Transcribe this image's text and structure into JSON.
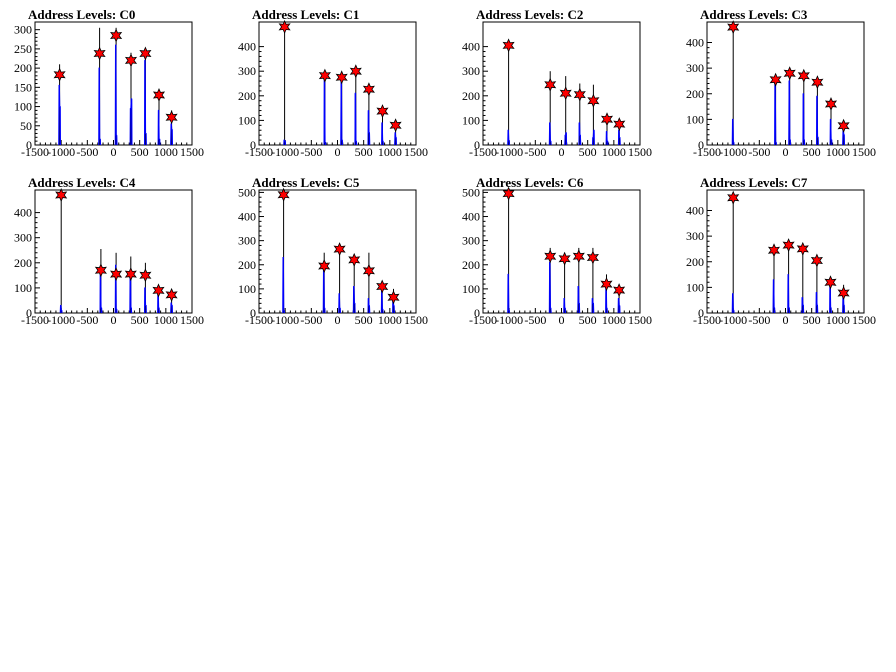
{
  "chart_data": [
    {
      "type": "bar",
      "title": "Address Levels: C0",
      "xlim": [
        -1500,
        1500
      ],
      "ylim": [
        0,
        320
      ],
      "xticks": [
        -1500,
        -1000,
        -500,
        0,
        500,
        1000,
        1500
      ],
      "yticks": [
        0,
        50,
        100,
        150,
        200,
        250,
        300
      ],
      "peaks": [
        {
          "x": -1030,
          "heights": [
            155,
            210,
            100
          ]
        },
        {
          "x": -265,
          "heights": [
            200,
            305,
            15
          ]
        },
        {
          "x": 50,
          "heights": [
            260,
            305,
            25
          ]
        },
        {
          "x": 335,
          "heights": [
            95,
            240,
            120
          ]
        },
        {
          "x": 610,
          "heights": [
            220,
            245,
            30
          ]
        },
        {
          "x": 870,
          "heights": [
            90,
            125,
            15
          ]
        },
        {
          "x": 1110,
          "heights": [
            55,
            90,
            40
          ]
        }
      ],
      "markers": [
        {
          "x": -1030,
          "y": 183
        },
        {
          "x": -265,
          "y": 238
        },
        {
          "x": 50,
          "y": 285
        },
        {
          "x": 335,
          "y": 220
        },
        {
          "x": 610,
          "y": 238
        },
        {
          "x": 870,
          "y": 130
        },
        {
          "x": 1110,
          "y": 72
        }
      ]
    },
    {
      "type": "bar",
      "title": "Address Levels: C1",
      "xlim": [
        -1500,
        1500
      ],
      "ylim": [
        0,
        500
      ],
      "xticks": [
        -1500,
        -1000,
        -500,
        0,
        500,
        1000,
        1500
      ],
      "yticks": [
        0,
        100,
        200,
        300,
        400
      ],
      "peaks": [
        {
          "x": -1010,
          "heights": [
            20,
            470,
            15
          ]
        },
        {
          "x": -240,
          "heights": [
            280,
            270,
            10
          ]
        },
        {
          "x": 80,
          "heights": [
            270,
            260,
            20
          ]
        },
        {
          "x": 350,
          "heights": [
            210,
            290,
            15
          ]
        },
        {
          "x": 600,
          "heights": [
            140,
            225,
            50
          ]
        },
        {
          "x": 860,
          "heights": [
            90,
            140,
            15
          ]
        },
        {
          "x": 1110,
          "heights": [
            50,
            75,
            30
          ]
        }
      ],
      "markers": [
        {
          "x": -1010,
          "y": 480
        },
        {
          "x": -240,
          "y": 282
        },
        {
          "x": 80,
          "y": 275
        },
        {
          "x": 350,
          "y": 300
        },
        {
          "x": 600,
          "y": 227
        },
        {
          "x": 860,
          "y": 138
        },
        {
          "x": 1110,
          "y": 80
        }
      ]
    },
    {
      "type": "bar",
      "title": "Address Levels: C2",
      "xlim": [
        -1500,
        1500
      ],
      "ylim": [
        0,
        500
      ],
      "xticks": [
        -1500,
        -1000,
        -500,
        0,
        500,
        1000,
        1500
      ],
      "yticks": [
        0,
        100,
        200,
        300,
        400
      ],
      "peaks": [
        {
          "x": -1010,
          "heights": [
            60,
            420,
            15
          ]
        },
        {
          "x": -215,
          "heights": [
            90,
            300,
            15
          ]
        },
        {
          "x": 80,
          "heights": [
            40,
            280,
            50
          ]
        },
        {
          "x": 350,
          "heights": [
            90,
            250,
            40
          ]
        },
        {
          "x": 610,
          "heights": [
            30,
            245,
            60
          ]
        },
        {
          "x": 870,
          "heights": [
            55,
            110,
            15
          ]
        },
        {
          "x": 1105,
          "heights": [
            60,
            90,
            30
          ]
        }
      ],
      "markers": [
        {
          "x": -1010,
          "y": 405
        },
        {
          "x": -215,
          "y": 245
        },
        {
          "x": 80,
          "y": 210
        },
        {
          "x": 350,
          "y": 205
        },
        {
          "x": 610,
          "y": 180
        },
        {
          "x": 870,
          "y": 105
        },
        {
          "x": 1105,
          "y": 85
        }
      ]
    },
    {
      "type": "bar",
      "title": "Address Levels: C3",
      "xlim": [
        -1500,
        1500
      ],
      "ylim": [
        0,
        480
      ],
      "xticks": [
        -1500,
        -1000,
        -500,
        0,
        500,
        1000,
        1500
      ],
      "yticks": [
        0,
        100,
        200,
        300,
        400
      ],
      "peaks": [
        {
          "x": -1000,
          "heights": [
            100,
            450,
            10
          ]
        },
        {
          "x": -190,
          "heights": [
            240,
            270,
            10
          ]
        },
        {
          "x": 80,
          "heights": [
            250,
            290,
            20
          ]
        },
        {
          "x": 350,
          "heights": [
            200,
            280,
            20
          ]
        },
        {
          "x": 610,
          "heights": [
            190,
            250,
            30
          ]
        },
        {
          "x": 870,
          "heights": [
            100,
            160,
            20
          ]
        },
        {
          "x": 1110,
          "heights": [
            60,
            90,
            40
          ]
        }
      ],
      "markers": [
        {
          "x": -1000,
          "y": 460
        },
        {
          "x": -190,
          "y": 255
        },
        {
          "x": 80,
          "y": 280
        },
        {
          "x": 350,
          "y": 270
        },
        {
          "x": 610,
          "y": 245
        },
        {
          "x": 870,
          "y": 160
        },
        {
          "x": 1110,
          "y": 75
        }
      ]
    },
    {
      "type": "bar",
      "title": "Address Levels: C4",
      "xlim": [
        -1500,
        1500
      ],
      "ylim": [
        0,
        490
      ],
      "xticks": [
        -1500,
        -1000,
        -500,
        0,
        500,
        1000,
        1500
      ],
      "yticks": [
        0,
        100,
        200,
        300,
        400
      ],
      "peaks": [
        {
          "x": -1000,
          "heights": [
            30,
            470,
            10
          ]
        },
        {
          "x": -240,
          "heights": [
            160,
            255,
            20
          ]
        },
        {
          "x": 50,
          "heights": [
            190,
            240,
            15
          ]
        },
        {
          "x": 330,
          "heights": [
            170,
            225,
            20
          ]
        },
        {
          "x": 610,
          "heights": [
            100,
            200,
            30
          ]
        },
        {
          "x": 860,
          "heights": [
            85,
            105,
            20
          ]
        },
        {
          "x": 1110,
          "heights": [
            40,
            80,
            30
          ]
        }
      ],
      "markers": [
        {
          "x": -1000,
          "y": 470
        },
        {
          "x": -240,
          "y": 170
        },
        {
          "x": 50,
          "y": 155
        },
        {
          "x": 330,
          "y": 155
        },
        {
          "x": 610,
          "y": 150
        },
        {
          "x": 860,
          "y": 90
        },
        {
          "x": 1110,
          "y": 72
        }
      ]
    },
    {
      "type": "bar",
      "title": "Address Levels: C5",
      "xlim": [
        -1500,
        1500
      ],
      "ylim": [
        0,
        510
      ],
      "xticks": [
        -1500,
        -1000,
        -500,
        0,
        500,
        1000,
        1500
      ],
      "yticks": [
        0,
        100,
        200,
        300,
        400,
        500
      ],
      "peaks": [
        {
          "x": -1030,
          "heights": [
            230,
            485,
            10
          ]
        },
        {
          "x": -255,
          "heights": [
            190,
            250,
            20
          ]
        },
        {
          "x": 40,
          "heights": [
            80,
            255,
            20
          ]
        },
        {
          "x": 320,
          "heights": [
            110,
            230,
            40
          ]
        },
        {
          "x": 600,
          "heights": [
            60,
            250,
            30
          ]
        },
        {
          "x": 855,
          "heights": [
            90,
            130,
            15
          ]
        },
        {
          "x": 1070,
          "heights": [
            80,
            100,
            30
          ]
        }
      ],
      "markers": [
        {
          "x": -1030,
          "y": 490
        },
        {
          "x": -255,
          "y": 195
        },
        {
          "x": 40,
          "y": 265
        },
        {
          "x": 320,
          "y": 220
        },
        {
          "x": 600,
          "y": 175
        },
        {
          "x": 855,
          "y": 110
        },
        {
          "x": 1070,
          "y": 65
        }
      ]
    },
    {
      "type": "bar",
      "title": "Address Levels: C6",
      "xlim": [
        -1500,
        1500
      ],
      "ylim": [
        0,
        510
      ],
      "xticks": [
        -1500,
        -1000,
        -500,
        0,
        500,
        1000,
        1500
      ],
      "yticks": [
        0,
        100,
        200,
        300,
        400,
        500
      ],
      "peaks": [
        {
          "x": -1010,
          "heights": [
            160,
            500,
            10
          ]
        },
        {
          "x": -215,
          "heights": [
            210,
            270,
            20
          ]
        },
        {
          "x": 60,
          "heights": [
            60,
            250,
            20
          ]
        },
        {
          "x": 330,
          "heights": [
            110,
            270,
            40
          ]
        },
        {
          "x": 600,
          "heights": [
            60,
            270,
            40
          ]
        },
        {
          "x": 860,
          "heights": [
            120,
            160,
            20
          ]
        },
        {
          "x": 1100,
          "heights": [
            60,
            100,
            30
          ]
        }
      ],
      "markers": [
        {
          "x": -1010,
          "y": 495
        },
        {
          "x": -215,
          "y": 235
        },
        {
          "x": 60,
          "y": 225
        },
        {
          "x": 330,
          "y": 235
        },
        {
          "x": 600,
          "y": 230
        },
        {
          "x": 860,
          "y": 120
        },
        {
          "x": 1100,
          "y": 95
        }
      ]
    },
    {
      "type": "bar",
      "title": "Address Levels: C7",
      "xlim": [
        -1500,
        1500
      ],
      "ylim": [
        0,
        480
      ],
      "xticks": [
        -1500,
        -1000,
        -500,
        0,
        500,
        1000,
        1500
      ],
      "yticks": [
        0,
        100,
        200,
        300,
        400
      ],
      "peaks": [
        {
          "x": -1000,
          "heights": [
            75,
            440,
            10
          ]
        },
        {
          "x": -220,
          "heights": [
            130,
            250,
            20
          ]
        },
        {
          "x": 60,
          "heights": [
            150,
            270,
            20
          ]
        },
        {
          "x": 330,
          "heights": [
            60,
            250,
            30
          ]
        },
        {
          "x": 600,
          "heights": [
            80,
            200,
            30
          ]
        },
        {
          "x": 860,
          "heights": [
            110,
            130,
            20
          ]
        },
        {
          "x": 1110,
          "heights": [
            90,
            110,
            30
          ]
        }
      ],
      "markers": [
        {
          "x": -1000,
          "y": 450
        },
        {
          "x": -220,
          "y": 245
        },
        {
          "x": 60,
          "y": 265
        },
        {
          "x": 330,
          "y": 250
        },
        {
          "x": 600,
          "y": 205
        },
        {
          "x": 860,
          "y": 120
        },
        {
          "x": 1110,
          "y": 78
        }
      ]
    }
  ],
  "colors": {
    "bar": "#0000ff",
    "spike": "#000000",
    "marker_fill": "#ff0000",
    "marker_stroke": "#000000",
    "axis": "#000000",
    "background": "#ffffff"
  }
}
